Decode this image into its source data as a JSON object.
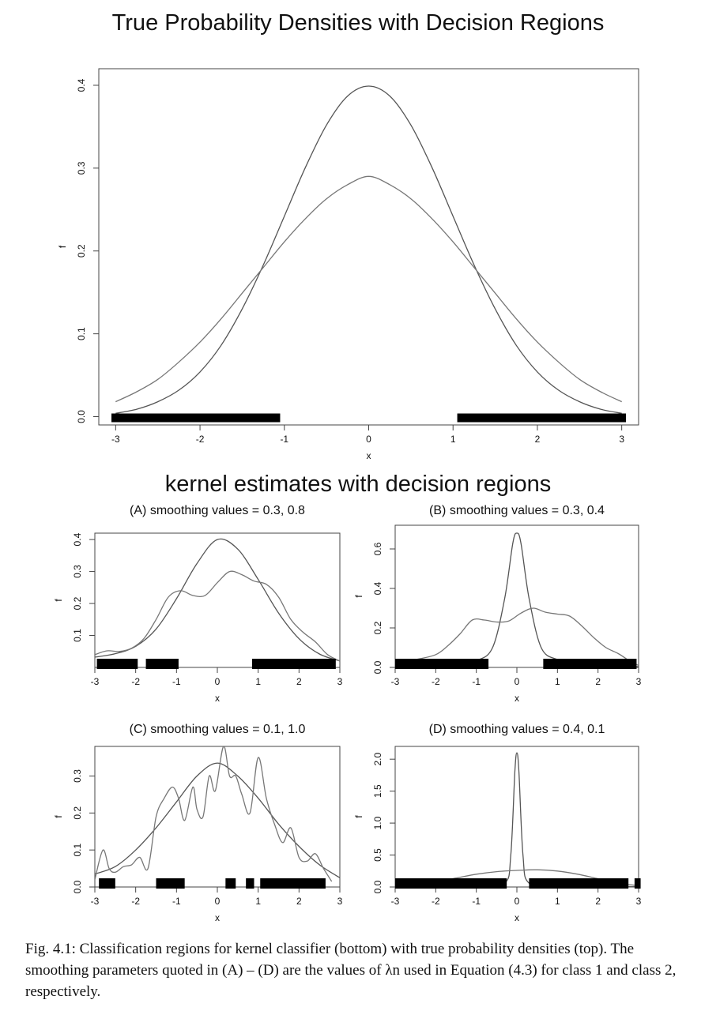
{
  "title": "True Probability Densities with Decision Regions",
  "kernel_title": "kernel estimates with decision regions",
  "caption": "Fig. 4.1: Classification regions for kernel classifier (bottom) with true probability densities (top). The smoothing parameters quoted in (A) – (D) are the values of λn used in Equation (4.3) for class 1 and class 2, respectively.",
  "chart_data": [
    {
      "id": "top",
      "type": "line",
      "title": "True Probability Densities with Decision Regions",
      "xlabel": "x",
      "ylabel": "f",
      "xlim": [
        -3.2,
        3.2
      ],
      "ylim": [
        -0.01,
        0.42
      ],
      "xticks": [
        -3,
        -2,
        -1,
        0,
        1,
        2,
        3
      ],
      "yticks": [
        0.0,
        0.1,
        0.2,
        0.3,
        0.4
      ],
      "ytick_labels": [
        "0.0",
        "0.1",
        "0.2",
        "0.3",
        "0.4"
      ],
      "series": [
        {
          "x": [
            -3,
            -2.75,
            -2.5,
            -2.25,
            -2,
            -1.75,
            -1.5,
            -1.25,
            -1,
            -0.75,
            -0.5,
            -0.25,
            0,
            0.25,
            0.5,
            0.75,
            1,
            1.25,
            1.5,
            1.75,
            2,
            2.25,
            2.5,
            2.75,
            3
          ],
          "y": [
            0.004,
            0.009,
            0.018,
            0.032,
            0.054,
            0.086,
            0.13,
            0.183,
            0.242,
            0.301,
            0.352,
            0.387,
            0.399,
            0.387,
            0.352,
            0.301,
            0.242,
            0.183,
            0.13,
            0.086,
            0.054,
            0.032,
            0.018,
            0.009,
            0.004
          ]
        },
        {
          "x": [
            -3,
            -2.75,
            -2.5,
            -2.25,
            -2,
            -1.75,
            -1.5,
            -1.25,
            -1,
            -0.75,
            -0.5,
            -0.25,
            0,
            0.25,
            0.5,
            0.75,
            1,
            1.25,
            1.5,
            1.75,
            2,
            2.25,
            2.5,
            2.75,
            3
          ],
          "y": [
            0.018,
            0.03,
            0.045,
            0.066,
            0.09,
            0.118,
            0.149,
            0.18,
            0.211,
            0.239,
            0.263,
            0.28,
            0.29,
            0.28,
            0.263,
            0.239,
            0.211,
            0.18,
            0.149,
            0.118,
            0.09,
            0.066,
            0.045,
            0.03,
            0.018
          ]
        }
      ],
      "regions": [
        [
          -3.05,
          -1.05
        ],
        [
          1.05,
          3.05
        ]
      ]
    },
    {
      "id": "A",
      "type": "line",
      "title": "(A) smoothing values = 0.3, 0.8",
      "xlabel": "x",
      "ylabel": "f",
      "xlim": [
        -3.0,
        3.0
      ],
      "ylim": [
        0.0,
        0.42
      ],
      "xticks": [
        -3,
        -2,
        -1,
        0,
        1,
        2,
        3
      ],
      "yticks": [
        0.1,
        0.2,
        0.3,
        0.4
      ],
      "ytick_labels": [
        "0.1",
        "0.2",
        "0.3",
        "0.4"
      ],
      "series": [
        {
          "x": [
            -3,
            -2.5,
            -2,
            -1.5,
            -1,
            -0.5,
            0,
            0.5,
            1,
            1.5,
            2,
            2.5,
            3
          ],
          "y": [
            0.032,
            0.043,
            0.066,
            0.12,
            0.215,
            0.325,
            0.4,
            0.37,
            0.275,
            0.17,
            0.09,
            0.042,
            0.02
          ]
        },
        {
          "x": [
            -3,
            -2.7,
            -2.4,
            -2.1,
            -1.8,
            -1.5,
            -1.2,
            -0.9,
            -0.6,
            -0.3,
            0,
            0.3,
            0.6,
            0.9,
            1.2,
            1.5,
            1.8,
            2.1,
            2.4,
            2.7,
            3
          ],
          "y": [
            0.04,
            0.052,
            0.05,
            0.06,
            0.09,
            0.15,
            0.22,
            0.24,
            0.225,
            0.225,
            0.265,
            0.3,
            0.29,
            0.27,
            0.26,
            0.22,
            0.15,
            0.11,
            0.08,
            0.04,
            0.02
          ]
        }
      ],
      "regions": [
        [
          -2.95,
          -1.95
        ],
        [
          -1.75,
          -0.95
        ],
        [
          0.85,
          2.9
        ]
      ]
    },
    {
      "id": "B",
      "type": "line",
      "title": "(B) smoothing values = 0.3, 0.4",
      "xlabel": "x",
      "ylabel": "f",
      "xlim": [
        -3.0,
        3.0
      ],
      "ylim": [
        0.0,
        0.72
      ],
      "xticks": [
        -3,
        -2,
        -1,
        0,
        1,
        2,
        3
      ],
      "yticks": [
        0.0,
        0.2,
        0.4,
        0.6
      ],
      "ytick_labels": [
        "0.0",
        "0.2",
        "0.4",
        "0.6"
      ],
      "series": [
        {
          "x": [
            -3,
            -2.5,
            -2,
            -1.5,
            -1,
            -0.6,
            -0.3,
            -0.1,
            0,
            0.1,
            0.3,
            0.6,
            1,
            1.5,
            2,
            2.5,
            3
          ],
          "y": [
            0.01,
            0.012,
            0.015,
            0.02,
            0.035,
            0.1,
            0.35,
            0.63,
            0.68,
            0.63,
            0.35,
            0.1,
            0.04,
            0.02,
            0.012,
            0.008,
            0.004
          ]
        },
        {
          "x": [
            -3,
            -2.5,
            -2,
            -1.7,
            -1.4,
            -1.1,
            -0.8,
            -0.5,
            -0.2,
            0.1,
            0.4,
            0.7,
            1,
            1.3,
            1.6,
            1.9,
            2.2,
            2.5,
            2.8,
            3
          ],
          "y": [
            0.03,
            0.04,
            0.065,
            0.11,
            0.17,
            0.24,
            0.24,
            0.23,
            0.235,
            0.275,
            0.3,
            0.28,
            0.27,
            0.26,
            0.21,
            0.15,
            0.1,
            0.07,
            0.03,
            0.01
          ]
        }
      ],
      "regions": [
        [
          -3.0,
          -0.7
        ],
        [
          0.65,
          2.95
        ]
      ]
    },
    {
      "id": "C",
      "type": "line",
      "title": "(C) smoothing values = 0.1, 1.0",
      "xlabel": "x",
      "ylabel": "f",
      "xlim": [
        -3.0,
        3.0
      ],
      "ylim": [
        0.0,
        0.38
      ],
      "xticks": [
        -3,
        -2,
        -1,
        0,
        1,
        2,
        3
      ],
      "yticks": [
        0.0,
        0.1,
        0.2,
        0.3
      ],
      "ytick_labels": [
        "0.0",
        "0.1",
        "0.2",
        "0.3"
      ],
      "series": [
        {
          "x": [
            -3,
            -2.5,
            -2,
            -1.5,
            -1,
            -0.5,
            0,
            0.5,
            1,
            1.5,
            2,
            2.5,
            3
          ],
          "y": [
            0.035,
            0.055,
            0.1,
            0.16,
            0.23,
            0.3,
            0.335,
            0.3,
            0.24,
            0.17,
            0.11,
            0.06,
            0.025
          ]
        },
        {
          "x": [
            -3,
            -2.8,
            -2.65,
            -2.5,
            -2.3,
            -2.1,
            -1.9,
            -1.7,
            -1.5,
            -1.3,
            -1.1,
            -0.95,
            -0.8,
            -0.6,
            -0.5,
            -0.35,
            -0.2,
            -0.05,
            0.15,
            0.3,
            0.45,
            0.6,
            0.8,
            1,
            1.2,
            1.4,
            1.6,
            1.8,
            2,
            2.2,
            2.4,
            2.6,
            2.8
          ],
          "y": [
            0.02,
            0.1,
            0.05,
            0.04,
            0.055,
            0.06,
            0.08,
            0.05,
            0.19,
            0.24,
            0.27,
            0.24,
            0.18,
            0.27,
            0.21,
            0.19,
            0.3,
            0.26,
            0.38,
            0.3,
            0.3,
            0.25,
            0.2,
            0.35,
            0.24,
            0.17,
            0.12,
            0.16,
            0.08,
            0.07,
            0.09,
            0.05,
            0.015
          ]
        }
      ],
      "regions": [
        [
          -2.9,
          -2.5
        ],
        [
          -1.5,
          -0.8
        ],
        [
          0.2,
          0.45
        ],
        [
          0.7,
          0.9
        ],
        [
          1.05,
          2.65
        ]
      ]
    },
    {
      "id": "D",
      "type": "line",
      "title": "(D) smoothing values = 0.4, 0.1",
      "xlabel": "x",
      "ylabel": "f",
      "xlim": [
        -3.0,
        3.0
      ],
      "ylim": [
        0.0,
        2.2
      ],
      "xticks": [
        -3,
        -2,
        -1,
        0,
        1,
        2,
        3
      ],
      "yticks": [
        0.0,
        0.5,
        1.0,
        1.5,
        2.0
      ],
      "ytick_labels": [
        "0.0",
        "0.5",
        "1.0",
        "1.5",
        "2.0"
      ],
      "series": [
        {
          "x": [
            -3,
            -2,
            -1,
            -0.3,
            -0.15,
            -0.05,
            0,
            0.05,
            0.15,
            0.3,
            1,
            2,
            3
          ],
          "y": [
            0.005,
            0.01,
            0.02,
            0.06,
            0.5,
            1.8,
            2.1,
            1.8,
            0.5,
            0.06,
            0.02,
            0.01,
            0.005
          ]
        },
        {
          "x": [
            -3,
            -2.5,
            -2,
            -1.5,
            -1,
            -0.5,
            0,
            0.5,
            1,
            1.5,
            2,
            2.5,
            3
          ],
          "y": [
            0.02,
            0.04,
            0.08,
            0.14,
            0.2,
            0.24,
            0.26,
            0.27,
            0.25,
            0.2,
            0.13,
            0.06,
            0.02
          ]
        }
      ],
      "regions": [
        [
          -3.0,
          -0.25
        ],
        [
          0.3,
          2.75
        ],
        [
          2.9,
          3.05
        ]
      ]
    }
  ]
}
